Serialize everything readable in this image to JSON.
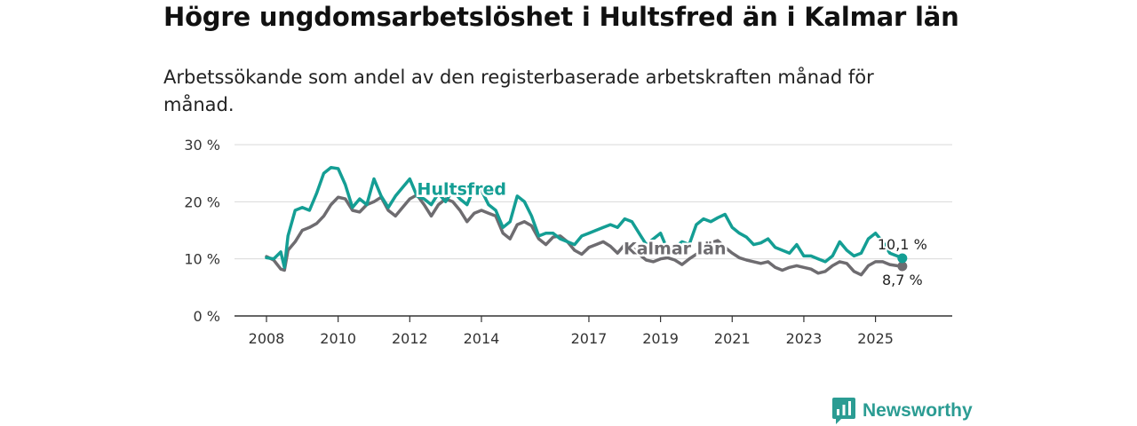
{
  "title": "Högre ungdomsarbetslöshet i Hultsfred än i Kalmar län",
  "subtitle": "Arbetssökande som andel av den registerbaserade arbetskraften månad för månad.",
  "brand": {
    "name": "Newsworthy",
    "icon": "newsworthy-logo-icon",
    "color": "#2b9c93"
  },
  "chart_data": {
    "type": "line",
    "title": "Högre ungdomsarbetslöshet i Hultsfred än i Kalmar län",
    "xlabel": "",
    "ylabel": "",
    "ylim": [
      0,
      30
    ],
    "xlim": [
      2008.0,
      2026.25
    ],
    "grid": true,
    "yticks": [
      {
        "value": 0,
        "label": "0 %"
      },
      {
        "value": 10,
        "label": "10 %"
      },
      {
        "value": 20,
        "label": "20 %"
      },
      {
        "value": 30,
        "label": "30 %"
      }
    ],
    "xticks": [
      {
        "value": 2008,
        "label": "2008"
      },
      {
        "value": 2010,
        "label": "2010"
      },
      {
        "value": 2012,
        "label": "2012"
      },
      {
        "value": 2014,
        "label": "2014"
      },
      {
        "value": 2017,
        "label": "2017"
      },
      {
        "value": 2019,
        "label": "2019"
      },
      {
        "value": 2021,
        "label": "2021"
      },
      {
        "value": 2023,
        "label": "2023"
      },
      {
        "value": 2025,
        "label": "2025"
      }
    ],
    "series": [
      {
        "name": "Kalmar län",
        "label": "Kalmar län",
        "color": "#6e6c70",
        "end_label": "8,7 %",
        "x": [
          2008.0,
          2008.2,
          2008.4,
          2008.5,
          2008.6,
          2008.8,
          2009.0,
          2009.2,
          2009.4,
          2009.6,
          2009.8,
          2010.0,
          2010.2,
          2010.4,
          2010.6,
          2010.8,
          2011.0,
          2011.2,
          2011.4,
          2011.6,
          2011.8,
          2012.0,
          2012.2,
          2012.4,
          2012.6,
          2012.8,
          2013.0,
          2013.2,
          2013.4,
          2013.6,
          2013.8,
          2014.0,
          2014.2,
          2014.4,
          2014.6,
          2014.8,
          2015.0,
          2015.2,
          2015.4,
          2015.6,
          2015.8,
          2016.0,
          2016.2,
          2016.4,
          2016.6,
          2016.8,
          2017.0,
          2017.2,
          2017.4,
          2017.6,
          2017.8,
          2018.0,
          2018.2,
          2018.4,
          2018.6,
          2018.8,
          2019.0,
          2019.2,
          2019.4,
          2019.6,
          2019.8,
          2020.0,
          2020.2,
          2020.4,
          2020.6,
          2020.8,
          2021.0,
          2021.2,
          2021.4,
          2021.6,
          2021.8,
          2022.0,
          2022.2,
          2022.4,
          2022.6,
          2022.8,
          2023.0,
          2023.2,
          2023.4,
          2023.6,
          2023.8,
          2024.0,
          2024.2,
          2024.4,
          2024.6,
          2024.8,
          2025.0,
          2025.2,
          2025.4,
          2025.6,
          2025.75
        ],
        "values": [
          10.4,
          9.8,
          8.2,
          8.0,
          11.5,
          13.0,
          15.0,
          15.5,
          16.2,
          17.5,
          19.5,
          20.8,
          20.5,
          18.5,
          18.2,
          19.5,
          20.0,
          20.8,
          18.5,
          17.5,
          19.0,
          20.5,
          21.2,
          19.5,
          17.5,
          19.5,
          20.5,
          20.0,
          18.5,
          16.5,
          18.0,
          18.5,
          18.0,
          17.5,
          14.5,
          13.5,
          16.0,
          16.5,
          15.8,
          13.5,
          12.5,
          13.8,
          14.0,
          13.0,
          11.5,
          10.8,
          12.0,
          12.5,
          13.0,
          12.2,
          11.0,
          12.5,
          12.0,
          10.8,
          9.8,
          9.5,
          10.0,
          10.2,
          9.8,
          9.0,
          10.0,
          10.8,
          11.5,
          12.8,
          13.2,
          12.0,
          11.0,
          10.2,
          9.8,
          9.5,
          9.2,
          9.5,
          8.5,
          8.0,
          8.5,
          8.8,
          8.5,
          8.2,
          7.5,
          7.8,
          8.8,
          9.5,
          9.2,
          7.8,
          7.2,
          8.8,
          9.5,
          9.5,
          9.0,
          8.8,
          8.7
        ]
      },
      {
        "name": "Hultsfred",
        "label": "Hultsfred",
        "color": "#149e94",
        "end_label": "10,1 %",
        "x": [
          2008.0,
          2008.2,
          2008.4,
          2008.5,
          2008.6,
          2008.8,
          2009.0,
          2009.2,
          2009.4,
          2009.6,
          2009.8,
          2010.0,
          2010.2,
          2010.4,
          2010.6,
          2010.8,
          2011.0,
          2011.2,
          2011.4,
          2011.6,
          2011.8,
          2012.0,
          2012.2,
          2012.4,
          2012.6,
          2012.8,
          2013.0,
          2013.2,
          2013.4,
          2013.6,
          2013.8,
          2014.0,
          2014.2,
          2014.4,
          2014.6,
          2014.8,
          2015.0,
          2015.2,
          2015.4,
          2015.6,
          2015.8,
          2016.0,
          2016.2,
          2016.4,
          2016.6,
          2016.8,
          2017.0,
          2017.2,
          2017.4,
          2017.6,
          2017.8,
          2018.0,
          2018.2,
          2018.4,
          2018.6,
          2018.8,
          2019.0,
          2019.2,
          2019.4,
          2019.6,
          2019.8,
          2020.0,
          2020.2,
          2020.4,
          2020.6,
          2020.8,
          2021.0,
          2021.2,
          2021.4,
          2021.6,
          2021.8,
          2022.0,
          2022.2,
          2022.4,
          2022.6,
          2022.8,
          2023.0,
          2023.2,
          2023.4,
          2023.6,
          2023.8,
          2024.0,
          2024.2,
          2024.4,
          2024.6,
          2024.8,
          2025.0,
          2025.2,
          2025.4,
          2025.6,
          2025.75
        ],
        "values": [
          10.2,
          10.0,
          11.2,
          8.5,
          14.0,
          18.5,
          19.0,
          18.5,
          21.5,
          25.0,
          26.0,
          25.8,
          23.0,
          19.0,
          20.5,
          19.5,
          24.0,
          21.0,
          19.0,
          21.0,
          22.5,
          24.0,
          21.0,
          20.5,
          19.5,
          21.5,
          20.0,
          22.0,
          20.5,
          19.5,
          22.5,
          22.0,
          19.5,
          18.5,
          15.5,
          16.5,
          21.0,
          20.0,
          17.5,
          14.0,
          14.5,
          14.5,
          13.5,
          13.0,
          12.5,
          14.0,
          14.5,
          15.0,
          15.5,
          16.0,
          15.5,
          17.0,
          16.5,
          14.5,
          12.5,
          13.5,
          14.5,
          11.5,
          12.0,
          13.0,
          12.5,
          16.0,
          17.0,
          16.5,
          17.2,
          17.8,
          15.5,
          14.5,
          13.8,
          12.5,
          12.8,
          13.5,
          12.0,
          11.5,
          11.0,
          12.5,
          10.5,
          10.5,
          10.0,
          9.5,
          10.5,
          13.0,
          11.5,
          10.5,
          11.0,
          13.5,
          14.5,
          13.0,
          11.0,
          10.5,
          10.1
        ]
      }
    ],
    "annotations": [
      {
        "text": "Hultsfred",
        "series": "Hultsfred",
        "x": 2013.45,
        "y": 21.2
      },
      {
        "text": "Kalmar län",
        "series": "Kalmar län",
        "x": 2019.4,
        "y": 10.8
      }
    ]
  }
}
